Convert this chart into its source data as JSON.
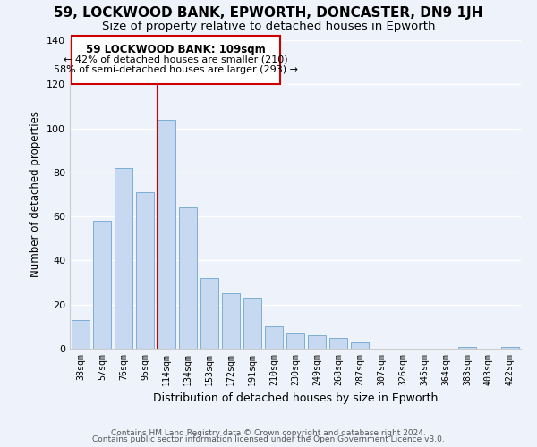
{
  "title1": "59, LOCKWOOD BANK, EPWORTH, DONCASTER, DN9 1JH",
  "title2": "Size of property relative to detached houses in Epworth",
  "xlabel": "Distribution of detached houses by size in Epworth",
  "ylabel": "Number of detached properties",
  "bar_labels": [
    "38sqm",
    "57sqm",
    "76sqm",
    "95sqm",
    "114sqm",
    "134sqm",
    "153sqm",
    "172sqm",
    "191sqm",
    "210sqm",
    "230sqm",
    "249sqm",
    "268sqm",
    "287sqm",
    "307sqm",
    "326sqm",
    "345sqm",
    "364sqm",
    "383sqm",
    "403sqm",
    "422sqm"
  ],
  "bar_values": [
    13,
    58,
    82,
    71,
    104,
    64,
    32,
    25,
    23,
    10,
    7,
    6,
    5,
    3,
    0,
    0,
    0,
    0,
    1,
    0,
    1
  ],
  "bar_color": "#c6d9f0",
  "bar_edge_color": "#7bafd4",
  "vline_color": "#cc0000",
  "vline_x": 3.575,
  "annotation_text1": "59 LOCKWOOD BANK: 109sqm",
  "annotation_text2": "← 42% of detached houses are smaller (210)",
  "annotation_text3": "58% of semi-detached houses are larger (293) →",
  "box_edge_color": "#cc0000",
  "ylim": [
    0,
    140
  ],
  "yticks": [
    0,
    20,
    40,
    60,
    80,
    100,
    120,
    140
  ],
  "footer1": "Contains HM Land Registry data © Crown copyright and database right 2024.",
  "footer2": "Contains public sector information licensed under the Open Government Licence v3.0.",
  "bg_color": "#eef2fa",
  "grid_color": "#ffffff"
}
